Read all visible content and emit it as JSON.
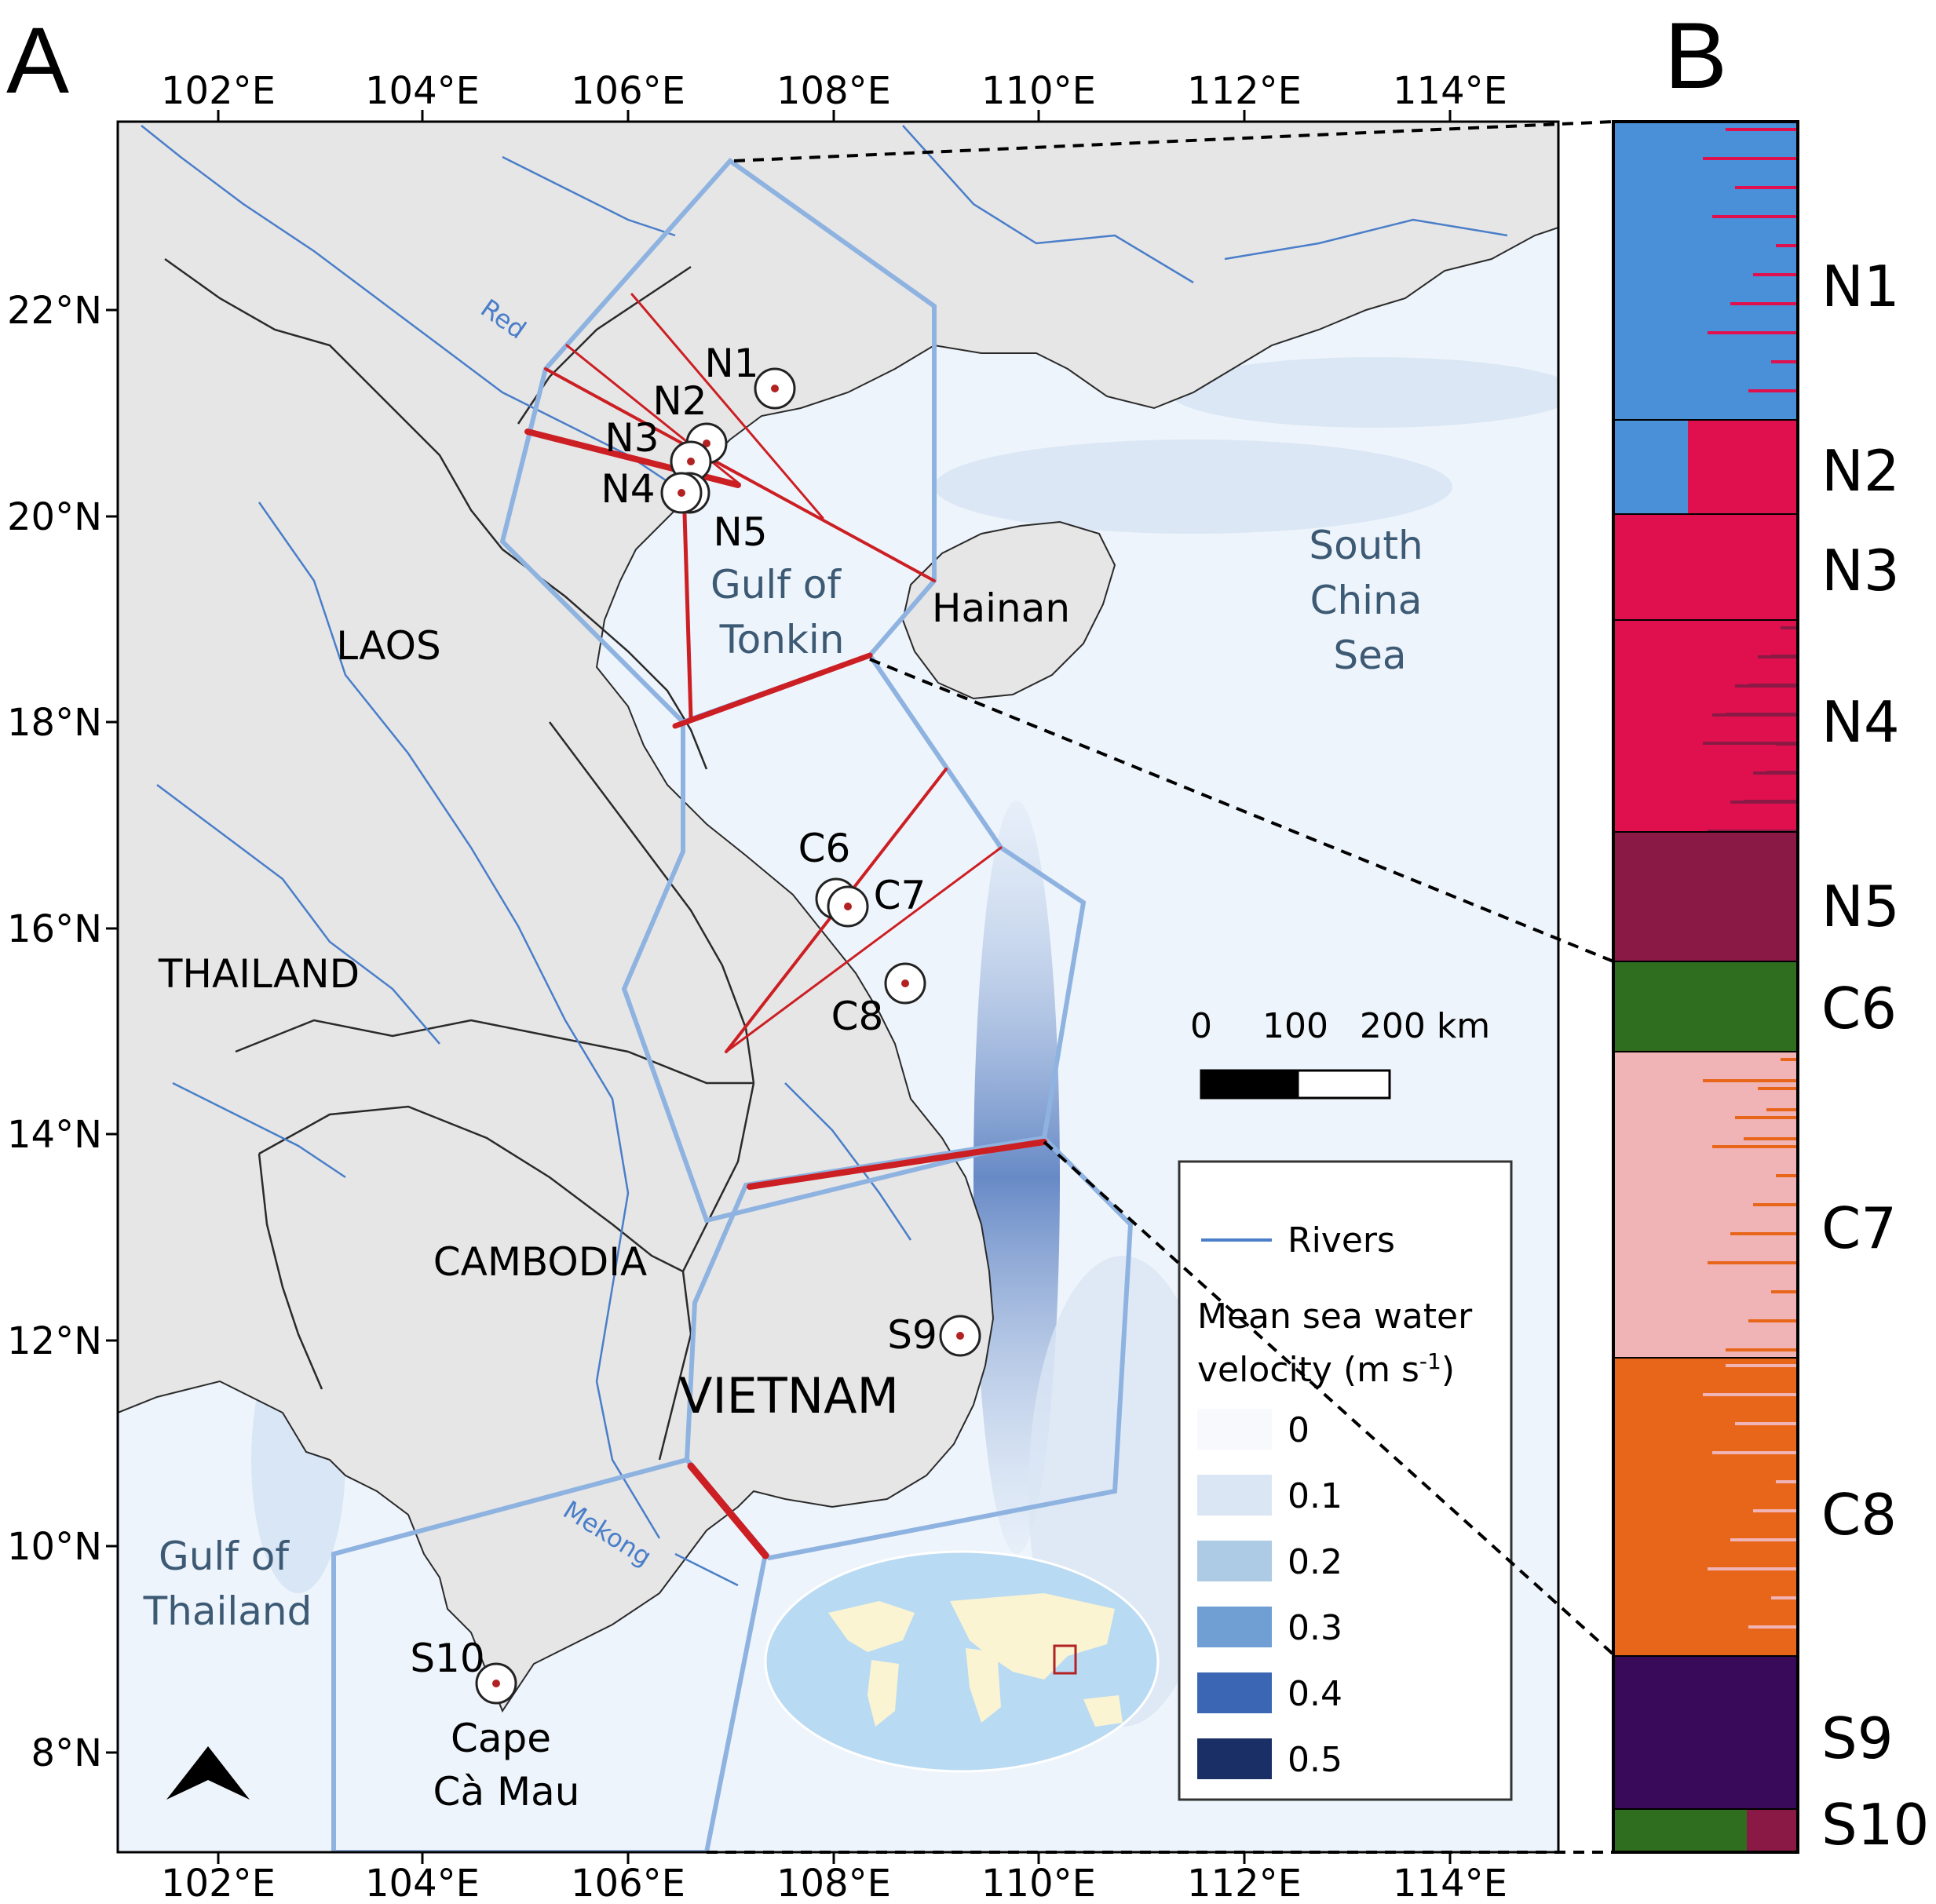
{
  "panels": {
    "a": "A",
    "b": "B"
  },
  "axes": {
    "x_ticks": [
      "102°E",
      "104°E",
      "106°E",
      "108°E",
      "110°E",
      "112°E",
      "114°E"
    ],
    "y_ticks": [
      "22°N",
      "20°N",
      "18°N",
      "16°N",
      "14°N",
      "12°N",
      "10°N",
      "8°N"
    ]
  },
  "map_labels": {
    "countries": [
      "LAOS",
      "THAILAND",
      "CAMBODIA",
      "VIETNAM"
    ],
    "hainan": "Hainan",
    "gulf_tonkin": [
      "Gulf of",
      "Tonkin"
    ],
    "south_china_sea": [
      "South",
      "China",
      "Sea"
    ],
    "gulf_thailand": [
      "Gulf of",
      "Thailand"
    ],
    "rivers": {
      "red": "Red",
      "mekong": "Mekong"
    },
    "cape": [
      "Cape",
      "Cà Mau"
    ]
  },
  "sites": [
    "N1",
    "N2",
    "N3",
    "N4",
    "N5",
    "C6",
    "C7",
    "C8",
    "S9",
    "S10"
  ],
  "scale_bar": {
    "labels": [
      "0",
      "100",
      "200 km"
    ]
  },
  "legend": {
    "rivers_label": "Rivers",
    "velocity_title_line1": "Mean sea water",
    "velocity_title_line2": "velocity (m s",
    "velocity_title_sup": "-1",
    "velocity_title_end": ")",
    "velocity_entries": [
      {
        "label": "0",
        "color": "#f7f9fc"
      },
      {
        "label": "0.1",
        "color": "#dbe6f5"
      },
      {
        "label": "0.2",
        "color": "#aecbe6"
      },
      {
        "label": "0.3",
        "color": "#6f9fd3"
      },
      {
        "label": "0.4",
        "color": "#3a66b4"
      },
      {
        "label": "0.5",
        "color": "#1a2f66"
      }
    ]
  },
  "structure_plot": {
    "populations": [
      "N1",
      "N2",
      "N3",
      "N4",
      "N5",
      "C6",
      "C7",
      "C8",
      "S9",
      "S10"
    ],
    "cluster_colors": {
      "N1": "#4a90d9",
      "N3": "#e0104e",
      "N5": "#8a1a45",
      "C6": "#2f6d1f",
      "C7": "#f0b3b6",
      "C8": "#e8661a",
      "S9": "#3a0a5a"
    }
  },
  "colors": {
    "land": "#e6e6e6",
    "sea": "#eef4fb",
    "river": "#4a7ec9",
    "boundary_blue": "#8fb3e0",
    "barrier_red": "#cc1f24",
    "site_dot": "#b22222"
  }
}
